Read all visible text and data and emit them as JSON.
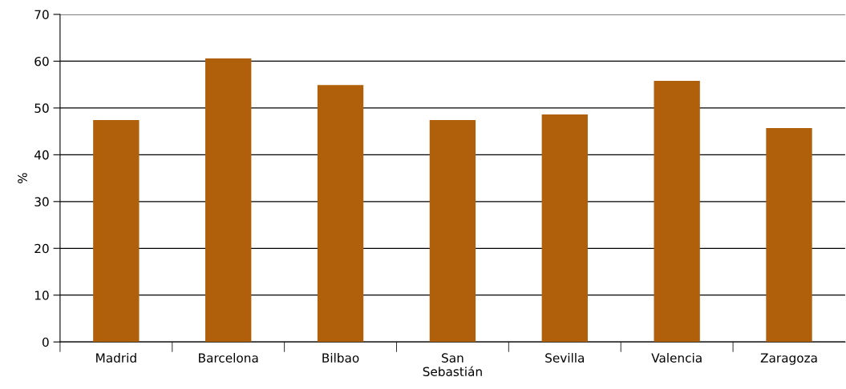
{
  "chart_data": {
    "type": "bar",
    "ylabel": "%",
    "categories": [
      "Madrid",
      "Barcelona",
      "Bilbao",
      "San\nSebastián",
      "Sevilla",
      "Valencia",
      "Zaragoza"
    ],
    "values": [
      47.4,
      60.6,
      54.9,
      47.4,
      48.6,
      55.8,
      45.7
    ],
    "color": "#b05f0b",
    "ylim": [
      0,
      70
    ],
    "yticks": [
      0,
      10,
      20,
      30,
      40,
      50,
      60,
      70
    ],
    "grid": "y"
  }
}
